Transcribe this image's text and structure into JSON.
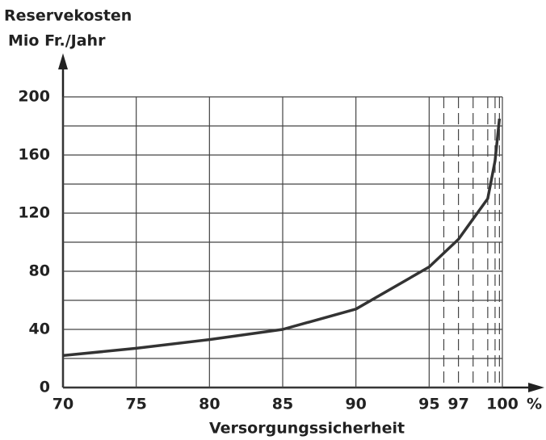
{
  "chart_data": {
    "type": "line",
    "y_label": [
      "Reservekosten",
      "Mio Fr./Jahr"
    ],
    "x_label": "Versorgungssicherheit",
    "x_unit": "%",
    "x": [
      70,
      75,
      80,
      85,
      90,
      95,
      97,
      98,
      99,
      99.5,
      99.8
    ],
    "values": [
      22,
      27,
      33,
      40,
      54,
      83,
      102,
      116,
      130,
      156,
      185
    ],
    "color": "#333333",
    "xlim": [
      70,
      100
    ],
    "xticks": [
      70,
      75,
      80,
      85,
      90,
      95,
      97,
      100
    ],
    "xgrid_solid": [
      70,
      75,
      80,
      85,
      90,
      95,
      100
    ],
    "xgrid_dashed": [
      96,
      97,
      98,
      99,
      99.5,
      99.8
    ],
    "ylim": [
      0,
      200
    ],
    "yticks": [
      0,
      40,
      80,
      120,
      160,
      200
    ],
    "ygrid_minor": [
      20,
      60,
      100,
      140,
      180
    ],
    "grid": true
  }
}
